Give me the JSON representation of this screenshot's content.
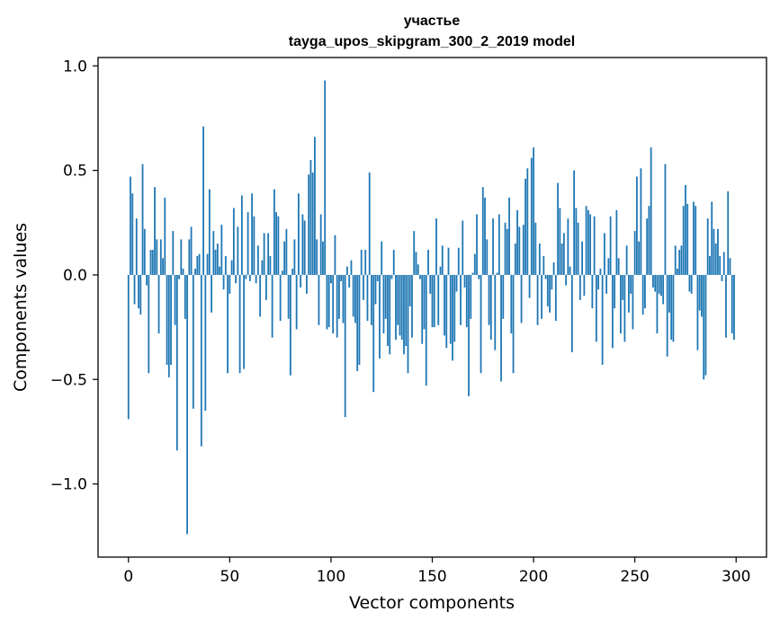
{
  "chart_data": {
    "type": "bar",
    "title_line1": "участье",
    "title_line2": "tayga_upos_skipgram_300_2_2019 model",
    "xlabel": "Vector components",
    "ylabel": "Components values",
    "xlim": [
      -15,
      315
    ],
    "ylim": [
      -1.35,
      1.04
    ],
    "xticks": [
      0,
      50,
      100,
      150,
      200,
      250,
      300
    ],
    "yticks": [
      -1.0,
      -0.5,
      0.0,
      0.5,
      1.0
    ],
    "xtick_labels": [
      "0",
      "50",
      "100",
      "150",
      "200",
      "250",
      "300"
    ],
    "ytick_labels": [
      "−1.0",
      "−0.5",
      "0.0",
      "0.5",
      "1.0"
    ],
    "bar_color": "#1f77b4",
    "values": [
      -0.69,
      0.47,
      0.39,
      -0.14,
      0.27,
      -0.16,
      -0.19,
      0.53,
      0.22,
      -0.05,
      -0.47,
      0.12,
      0.12,
      0.42,
      0.17,
      -0.28,
      0.17,
      0.08,
      0.37,
      -0.43,
      -0.49,
      -0.43,
      0.21,
      -0.24,
      -0.84,
      -0.02,
      0.17,
      0.03,
      -0.21,
      -1.24,
      0.17,
      0.23,
      -0.64,
      0.03,
      0.09,
      0.1,
      -0.82,
      0.71,
      -0.65,
      0.1,
      0.41,
      -0.18,
      0.21,
      0.12,
      0.15,
      0.04,
      0.24,
      -0.07,
      0.09,
      -0.47,
      -0.09,
      0.07,
      0.32,
      -0.04,
      0.23,
      -0.47,
      0.38,
      -0.45,
      -0.02,
      0.3,
      -0.03,
      0.39,
      0.28,
      -0.04,
      0.14,
      -0.2,
      0.07,
      0.2,
      -0.12,
      0.2,
      0.09,
      -0.3,
      0.41,
      0.3,
      0.28,
      -0.22,
      0.02,
      0.16,
      0.22,
      -0.21,
      -0.48,
      0.03,
      0.17,
      -0.26,
      0.39,
      -0.06,
      0.29,
      0.26,
      -0.09,
      0.48,
      0.55,
      0.49,
      0.66,
      0.17,
      -0.24,
      0.29,
      0.16,
      0.93,
      -0.26,
      -0.25,
      -0.04,
      -0.28,
      0.19,
      -0.3,
      -0.21,
      -0.03,
      -0.23,
      -0.68,
      0.04,
      -0.06,
      0.07,
      -0.2,
      -0.23,
      -0.46,
      -0.43,
      0.12,
      -0.12,
      0.12,
      -0.22,
      0.49,
      -0.24,
      -0.56,
      -0.14,
      -0.03,
      -0.4,
      0.16,
      -0.28,
      -0.21,
      -0.34,
      -0.38,
      -0.02,
      0.12,
      -0.31,
      -0.24,
      -0.29,
      -0.31,
      -0.38,
      -0.34,
      -0.47,
      -0.15,
      -0.3,
      0.21,
      0.11,
      0.05,
      -0.02,
      -0.33,
      -0.26,
      -0.53,
      0.12,
      -0.09,
      -0.25,
      -0.25,
      0.27,
      -0.24,
      0.04,
      0.14,
      -0.29,
      -0.35,
      0.13,
      -0.33,
      -0.41,
      -0.32,
      -0.08,
      0.13,
      -0.24,
      0.26,
      -0.06,
      -0.25,
      -0.58,
      -0.21,
      0.01,
      0.1,
      0.29,
      -0.02,
      -0.47,
      0.42,
      0.37,
      0.17,
      -0.24,
      -0.31,
      0.27,
      -0.36,
      0.01,
      0.29,
      -0.51,
      -0.21,
      0.25,
      0.22,
      0.37,
      -0.28,
      -0.47,
      0.15,
      0.31,
      0.23,
      -0.23,
      0.24,
      0.46,
      0.51,
      -0.11,
      0.56,
      0.61,
      0.25,
      -0.24,
      0.15,
      -0.21,
      0.09,
      -0.02,
      -0.15,
      -0.18,
      -0.07,
      0.06,
      -0.22,
      0.44,
      0.32,
      0.15,
      0.2,
      -0.05,
      0.27,
      0.04,
      -0.37,
      0.5,
      0.32,
      0.25,
      -0.12,
      0.16,
      -0.1,
      0.33,
      0.31,
      0.29,
      -0.16,
      0.28,
      -0.32,
      -0.07,
      0.03,
      -0.43,
      0.2,
      -0.09,
      0.08,
      0.28,
      -0.35,
      -0.16,
      0.31,
      0.08,
      -0.28,
      -0.12,
      -0.32,
      0.14,
      -0.18,
      -0.09,
      -0.26,
      0.21,
      0.47,
      0.16,
      0.51,
      -0.19,
      -0.16,
      0.27,
      0.33,
      0.61,
      -0.06,
      -0.08,
      -0.28,
      -0.09,
      -0.1,
      -0.14,
      0.53,
      -0.39,
      -0.18,
      -0.31,
      -0.32,
      0.14,
      0.03,
      0.12,
      0.14,
      0.33,
      0.43,
      0.34,
      -0.08,
      -0.09,
      0.35,
      0.33,
      -0.36,
      -0.17,
      -0.2,
      -0.5,
      -0.48,
      0.27,
      0.09,
      0.35,
      0.22,
      0.15,
      0.22,
      0.09,
      -0.03,
      0.11,
      -0.3,
      0.4,
      0.08,
      -0.28,
      -0.31
    ]
  }
}
